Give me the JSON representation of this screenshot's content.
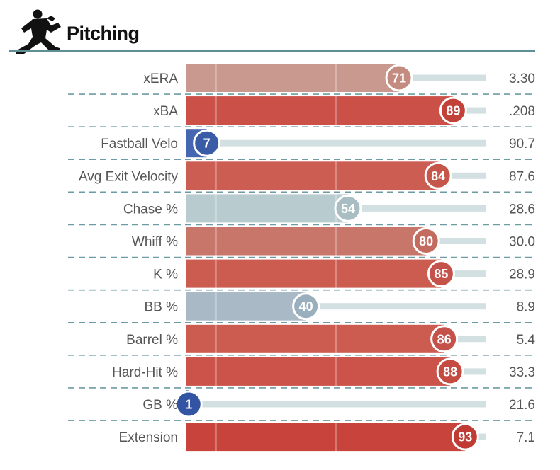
{
  "header": {
    "title": "Pitching",
    "icon": "pitcher-icon"
  },
  "colors": {
    "header_rule": "#5f8f96",
    "track": "#d3e0e2",
    "divider": "#6d9ba3",
    "stroke": "#ffffff"
  },
  "chart_data": {
    "type": "bar",
    "orientation": "horizontal",
    "xlim": [
      0,
      100
    ],
    "reference_lines": [
      10,
      50
    ],
    "categories": [
      "xERA",
      "xBA",
      "Fastball Velo",
      "Avg Exit Velocity",
      "Chase %",
      "Whiff %",
      "K %",
      "BB %",
      "Barrel %",
      "Hard-Hit %",
      "GB %",
      "Extension"
    ],
    "percentiles": [
      71,
      89,
      7,
      84,
      54,
      80,
      85,
      40,
      86,
      88,
      1,
      93
    ],
    "values": [
      "3.30",
      ".208",
      "90.7",
      "87.6",
      "28.6",
      "30.0",
      "28.9",
      "8.9",
      "5.4",
      "33.3",
      "21.6",
      "7.1"
    ],
    "bar_colors": [
      "#c9988e",
      "#ca5048",
      "#4566b0",
      "#cc5d52",
      "#b8ccd0",
      "#c8756a",
      "#cc5b50",
      "#a9bac6",
      "#cc5b50",
      "#cb5349",
      "#3b5fae",
      "#c8433b"
    ],
    "circle_colors": [
      "#c48c80",
      "#c2423a",
      "#3a5ba6",
      "#c6554a",
      "#a9bec3",
      "#c46b60",
      "#c5524a",
      "#9aafbd",
      "#c5524a",
      "#c44a42",
      "#3353a3",
      "#bf3b34"
    ]
  }
}
